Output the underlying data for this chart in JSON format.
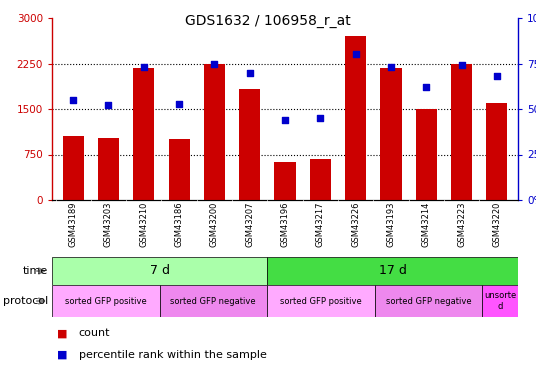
{
  "title": "GDS1632 / 106958_r_at",
  "samples": [
    "GSM43189",
    "GSM43203",
    "GSM43210",
    "GSM43186",
    "GSM43200",
    "GSM43207",
    "GSM43196",
    "GSM43217",
    "GSM43226",
    "GSM43193",
    "GSM43214",
    "GSM43223",
    "GSM43220"
  ],
  "counts": [
    1050,
    1020,
    2175,
    1000,
    2250,
    1825,
    620,
    680,
    2700,
    2175,
    1500,
    2250,
    1600
  ],
  "percentiles": [
    55,
    52,
    73,
    53,
    75,
    70,
    44,
    45,
    80,
    73,
    62,
    74,
    68
  ],
  "ylim_left": [
    0,
    3000
  ],
  "ylim_right": [
    0,
    100
  ],
  "yticks_left": [
    0,
    750,
    1500,
    2250,
    3000
  ],
  "yticks_right": [
    0,
    25,
    50,
    75,
    100
  ],
  "bar_color": "#cc0000",
  "scatter_color": "#0000cc",
  "time_groups": [
    {
      "label": "7 d",
      "start": 0,
      "end": 6,
      "color": "#aaffaa"
    },
    {
      "label": "17 d",
      "start": 6,
      "end": 13,
      "color": "#44dd44"
    }
  ],
  "protocol_groups": [
    {
      "label": "sorted GFP positive",
      "start": 0,
      "end": 3,
      "color": "#ffaaff"
    },
    {
      "label": "sorted GFP negative",
      "start": 3,
      "end": 6,
      "color": "#ee88ee"
    },
    {
      "label": "sorted GFP positive",
      "start": 6,
      "end": 9,
      "color": "#ffaaff"
    },
    {
      "label": "sorted GFP negative",
      "start": 9,
      "end": 12,
      "color": "#ee88ee"
    },
    {
      "label": "unsorte\nd",
      "start": 12,
      "end": 13,
      "color": "#ff55ff"
    }
  ],
  "legend_items": [
    {
      "label": "count",
      "color": "#cc0000"
    },
    {
      "label": "percentile rank within the sample",
      "color": "#0000cc"
    }
  ],
  "tick_label_color_left": "#cc0000",
  "tick_label_color_right": "#0000cc",
  "xlabel_row_bg": "#cccccc",
  "grid_dotted_at": [
    750,
    1500,
    2250
  ]
}
